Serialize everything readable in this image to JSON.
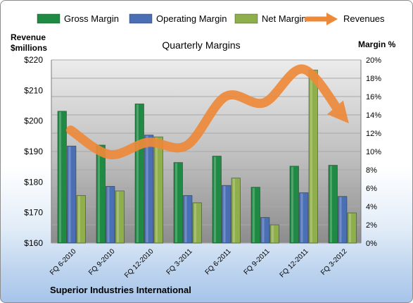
{
  "chart_data": {
    "type": "bar",
    "title": "Quarterly Margins",
    "company": "Superior Industries International",
    "left_axis_label": [
      "Revenue",
      "$millions"
    ],
    "right_axis_label": "Margin %",
    "categories": [
      "FQ 6-2010",
      "FQ 9-2010",
      "FQ 12-2010",
      "FQ 3-2011",
      "FQ 6-2011",
      "FQ 9-2011",
      "FQ 12-2011",
      "FQ 3-2012"
    ],
    "left_axis": {
      "min": 160,
      "max": 220,
      "step": 10,
      "ticks": [
        "$160",
        "$170",
        "$180",
        "$190",
        "$200",
        "$210",
        "$220"
      ]
    },
    "right_axis": {
      "min": 0,
      "max": 20,
      "step": 2,
      "ticks": [
        "0%",
        "2%",
        "4%",
        "6%",
        "8%",
        "10%",
        "12%",
        "14%",
        "16%",
        "18%",
        "20%"
      ]
    },
    "bar_series": [
      {
        "name": "Gross Margin",
        "color": "#1e8a43",
        "values": [
          14.4,
          10.7,
          15.2,
          8.8,
          9.5,
          6.1,
          8.4,
          8.5
        ]
      },
      {
        "name": "Operating Margin",
        "color": "#4a6fb5",
        "values": [
          10.6,
          6.2,
          11.8,
          5.2,
          6.3,
          2.8,
          5.5,
          5.1
        ]
      },
      {
        "name": "Net Margin",
        "color": "#8fae4c",
        "values": [
          5.2,
          5.7,
          11.6,
          4.4,
          7.1,
          2.0,
          18.9,
          3.3
        ]
      }
    ],
    "line_series": {
      "name": "Revenues",
      "color": "#ed8a3a",
      "values": [
        197,
        189,
        193,
        192,
        208,
        206,
        217,
        202
      ]
    },
    "legend_position": "top"
  }
}
